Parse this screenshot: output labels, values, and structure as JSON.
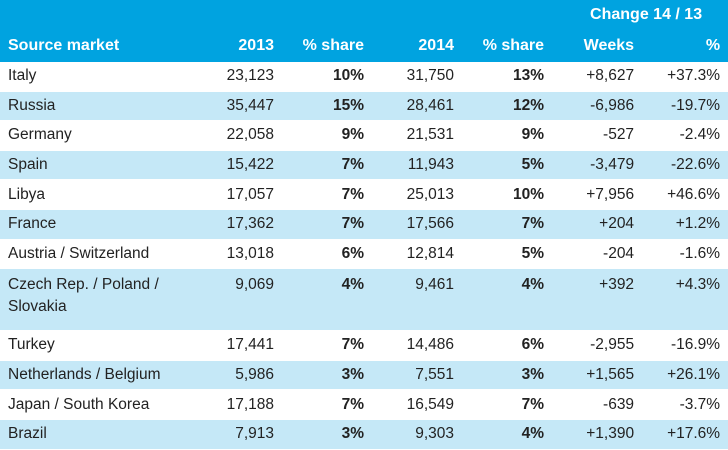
{
  "header": {
    "change_group": "Change 14 / 13",
    "columns": [
      "Source market",
      "2013",
      "% share",
      "2014",
      "% share",
      "Weeks",
      "%"
    ]
  },
  "rows": [
    [
      "Italy",
      "23,123",
      "10%",
      "31,750",
      "13%",
      "+8,627",
      "+37.3%"
    ],
    [
      "Russia",
      "35,447",
      "15%",
      "28,461",
      "12%",
      "-6,986",
      "-19.7%"
    ],
    [
      "Germany",
      "22,058",
      "9%",
      "21,531",
      "9%",
      "-527",
      "-2.4%"
    ],
    [
      "Spain",
      "15,422",
      "7%",
      "11,943",
      "5%",
      "-3,479",
      "-22.6%"
    ],
    [
      "Libya",
      "17,057",
      "7%",
      "25,013",
      "10%",
      "+7,956",
      "+46.6%"
    ],
    [
      "France",
      "17,362",
      "7%",
      "17,566",
      "7%",
      "+204",
      "+1.2%"
    ],
    [
      "Austria / Switzerland",
      "13,018",
      "6%",
      "12,814",
      "5%",
      "-204",
      "-1.6%"
    ],
    [
      "Czech Rep. / Poland / Slovakia",
      "9,069",
      "4%",
      "9,461",
      "4%",
      "+392",
      "+4.3%"
    ],
    [
      "Turkey",
      "17,441",
      "7%",
      "14,486",
      "6%",
      "-2,955",
      "-16.9%"
    ],
    [
      "Netherlands / Belgium",
      "5,986",
      "3%",
      "7,551",
      "3%",
      "+1,565",
      "+26.1%"
    ],
    [
      "Japan / South Korea",
      "17,188",
      "7%",
      "16,549",
      "7%",
      "-639",
      "-3.7%"
    ],
    [
      "Brazil",
      "7,913",
      "3%",
      "9,303",
      "4%",
      "+1,390",
      "+17.6%"
    ]
  ]
}
